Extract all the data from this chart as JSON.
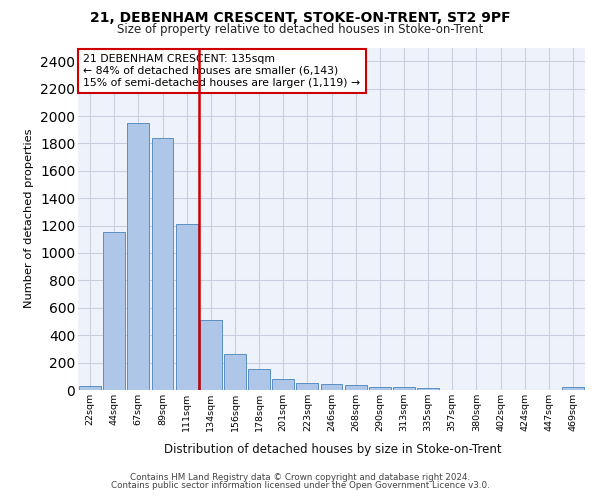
{
  "title1": "21, DEBENHAM CRESCENT, STOKE-ON-TRENT, ST2 9PF",
  "title2": "Size of property relative to detached houses in Stoke-on-Trent",
  "xlabel": "Distribution of detached houses by size in Stoke-on-Trent",
  "ylabel": "Number of detached properties",
  "categories": [
    "22sqm",
    "44sqm",
    "67sqm",
    "89sqm",
    "111sqm",
    "134sqm",
    "156sqm",
    "178sqm",
    "201sqm",
    "223sqm",
    "246sqm",
    "268sqm",
    "290sqm",
    "313sqm",
    "335sqm",
    "357sqm",
    "380sqm",
    "402sqm",
    "424sqm",
    "447sqm",
    "469sqm"
  ],
  "values": [
    30,
    1150,
    1950,
    1840,
    1210,
    510,
    265,
    155,
    80,
    50,
    45,
    40,
    20,
    20,
    15,
    0,
    0,
    0,
    0,
    0,
    20
  ],
  "bar_color": "#aec6e8",
  "bar_edge_color": "#5a8fc0",
  "property_line_index": 4.5,
  "property_line_color": "#cc0000",
  "annotation_text": "21 DEBENHAM CRESCENT: 135sqm\n← 84% of detached houses are smaller (6,143)\n15% of semi-detached houses are larger (1,119) →",
  "annotation_box_color": "#cc0000",
  "ylim": [
    0,
    2500
  ],
  "yticks": [
    0,
    200,
    400,
    600,
    800,
    1000,
    1200,
    1400,
    1600,
    1800,
    2000,
    2200,
    2400
  ],
  "grid_color": "#c8d0e0",
  "bg_color": "#eef2fb",
  "footer1": "Contains HM Land Registry data © Crown copyright and database right 2024.",
  "footer2": "Contains public sector information licensed under the Open Government Licence v3.0."
}
